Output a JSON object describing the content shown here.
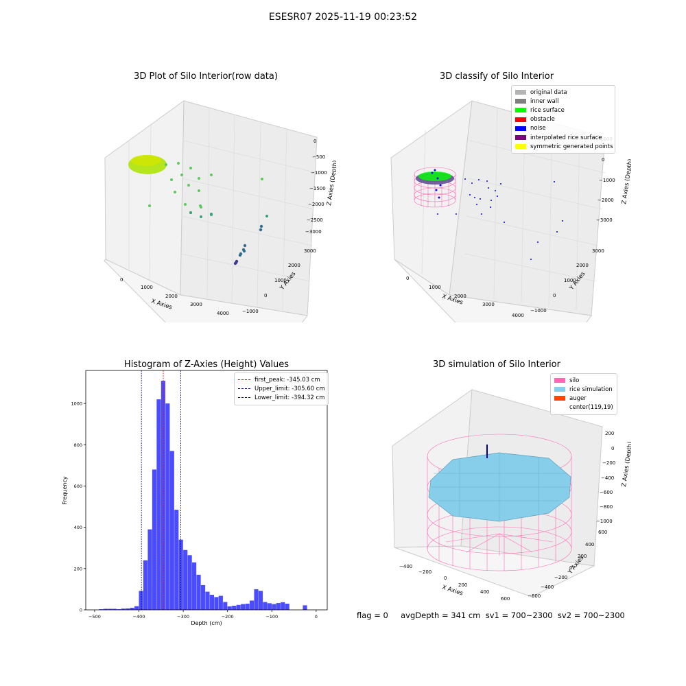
{
  "suptitle": "ESESR07 2025-11-19 00:23:52",
  "panels": {
    "raw": {
      "title": "3D Plot of Silo Interior(row data)",
      "xlabel": "X Axies",
      "ylabel": "Y Axies",
      "zlabel": "Z Axies (Depth)",
      "xticks": [
        "0",
        "1000",
        "2000",
        "3000",
        "4000"
      ],
      "yticks": [
        "3000",
        "2000",
        "1000",
        "0",
        "−1000"
      ],
      "zticks": [
        "0",
        "−500",
        "−1000",
        "−1500",
        "−2000",
        "−2500",
        "−3000"
      ]
    },
    "classify": {
      "title": "3D classify of Silo Interior",
      "xlabel": "X Axies",
      "ylabel": "Y Axies",
      "zlabel": "Z Axies (Depth)",
      "xticks": [
        "0",
        "1000",
        "2000",
        "3000",
        "4000"
      ],
      "yticks": [
        "3000",
        "2000",
        "1000",
        "0",
        "−1000"
      ],
      "zticks": [
        "1000",
        "0",
        "−1000",
        "−2000",
        "−3000"
      ],
      "legend": [
        {
          "label": "original data",
          "color": "#b3b3b3"
        },
        {
          "label": "inner wall",
          "color": "#808080"
        },
        {
          "label": "rice surface",
          "color": "#00ff00"
        },
        {
          "label": "obstacle",
          "color": "#ff0000"
        },
        {
          "label": "noise",
          "color": "#0000ff"
        },
        {
          "label": "interpolated rice surface",
          "color": "#800080"
        },
        {
          "label": "symmetric generated points",
          "color": "#ffff00"
        }
      ]
    },
    "simulation": {
      "title": "3D simulation of Silo Interior",
      "xlabel": "X Axies",
      "ylabel": "Y Axies",
      "zlabel": "Z Axies (Depth)",
      "xticks": [
        "−400",
        "−200",
        "0",
        "200",
        "400",
        "600"
      ],
      "yticks": [
        "600",
        "400",
        "200",
        "0",
        "−200",
        "−400",
        "−600"
      ],
      "zticks": [
        "200",
        "0",
        "−200",
        "−400",
        "−600",
        "−800",
        "−1000"
      ],
      "legend": [
        {
          "label": "silo",
          "color": "#ff69b4"
        },
        {
          "label": "rice simulation",
          "color": "#87ceeb"
        },
        {
          "label": "auger",
          "color": "#ff4500"
        },
        {
          "label": "center(119,19)",
          "color": "#ffffff"
        }
      ]
    }
  },
  "status": "flag = 0     avgDepth = 341 cm  sv1 = 700~2300  sv2 = 700~2300",
  "chart_data": {
    "type": "bar",
    "title": "Histogram of Z-Axies (Height) Values",
    "xlabel": "Depth (cm)",
    "ylabel": "Frequency",
    "xlim": [
      -520,
      25
    ],
    "ylim": [
      0,
      1160
    ],
    "xticks": [
      -500,
      -400,
      -300,
      -200,
      -100,
      0
    ],
    "yticks": [
      0,
      200,
      400,
      600,
      800,
      1000
    ],
    "bar_color": "#0000ff",
    "bin_width": 10,
    "bins": [
      {
        "x0": -490,
        "count": 3
      },
      {
        "x0": -480,
        "count": 5
      },
      {
        "x0": -470,
        "count": 5
      },
      {
        "x0": -460,
        "count": 5
      },
      {
        "x0": -450,
        "count": 3
      },
      {
        "x0": -440,
        "count": 6
      },
      {
        "x0": -430,
        "count": 7
      },
      {
        "x0": -420,
        "count": 10
      },
      {
        "x0": -410,
        "count": 18
      },
      {
        "x0": -400,
        "count": 92
      },
      {
        "x0": -390,
        "count": 240
      },
      {
        "x0": -380,
        "count": 390
      },
      {
        "x0": -370,
        "count": 680
      },
      {
        "x0": -360,
        "count": 1020
      },
      {
        "x0": -350,
        "count": 1110
      },
      {
        "x0": -340,
        "count": 1000
      },
      {
        "x0": -330,
        "count": 770
      },
      {
        "x0": -320,
        "count": 485
      },
      {
        "x0": -310,
        "count": 340
      },
      {
        "x0": -300,
        "count": 290
      },
      {
        "x0": -290,
        "count": 265
      },
      {
        "x0": -280,
        "count": 230
      },
      {
        "x0": -270,
        "count": 170
      },
      {
        "x0": -260,
        "count": 120
      },
      {
        "x0": -250,
        "count": 88
      },
      {
        "x0": -240,
        "count": 73
      },
      {
        "x0": -230,
        "count": 62
      },
      {
        "x0": -220,
        "count": 68
      },
      {
        "x0": -210,
        "count": 38
      },
      {
        "x0": -200,
        "count": 17
      },
      {
        "x0": -190,
        "count": 20
      },
      {
        "x0": -180,
        "count": 24
      },
      {
        "x0": -170,
        "count": 28
      },
      {
        "x0": -160,
        "count": 30
      },
      {
        "x0": -150,
        "count": 45
      },
      {
        "x0": -140,
        "count": 100
      },
      {
        "x0": -130,
        "count": 92
      },
      {
        "x0": -120,
        "count": 38
      },
      {
        "x0": -110,
        "count": 32
      },
      {
        "x0": -100,
        "count": 28
      },
      {
        "x0": -90,
        "count": 33
      },
      {
        "x0": -80,
        "count": 37
      },
      {
        "x0": -70,
        "count": 30
      },
      {
        "x0": -60,
        "count": 0
      },
      {
        "x0": -50,
        "count": 0
      },
      {
        "x0": -40,
        "count": 0
      },
      {
        "x0": -30,
        "count": 22
      }
    ],
    "vlines": [
      {
        "label": "first_peak: -345.03 cm",
        "value": -345.03,
        "color": "#ff0000"
      },
      {
        "label": "Upper_limit: -305.60 cm",
        "value": -305.6,
        "color": "#00008b"
      },
      {
        "label": "Lower_limit: -394.32 cm",
        "value": -394.32,
        "color": "#00008b"
      }
    ]
  }
}
